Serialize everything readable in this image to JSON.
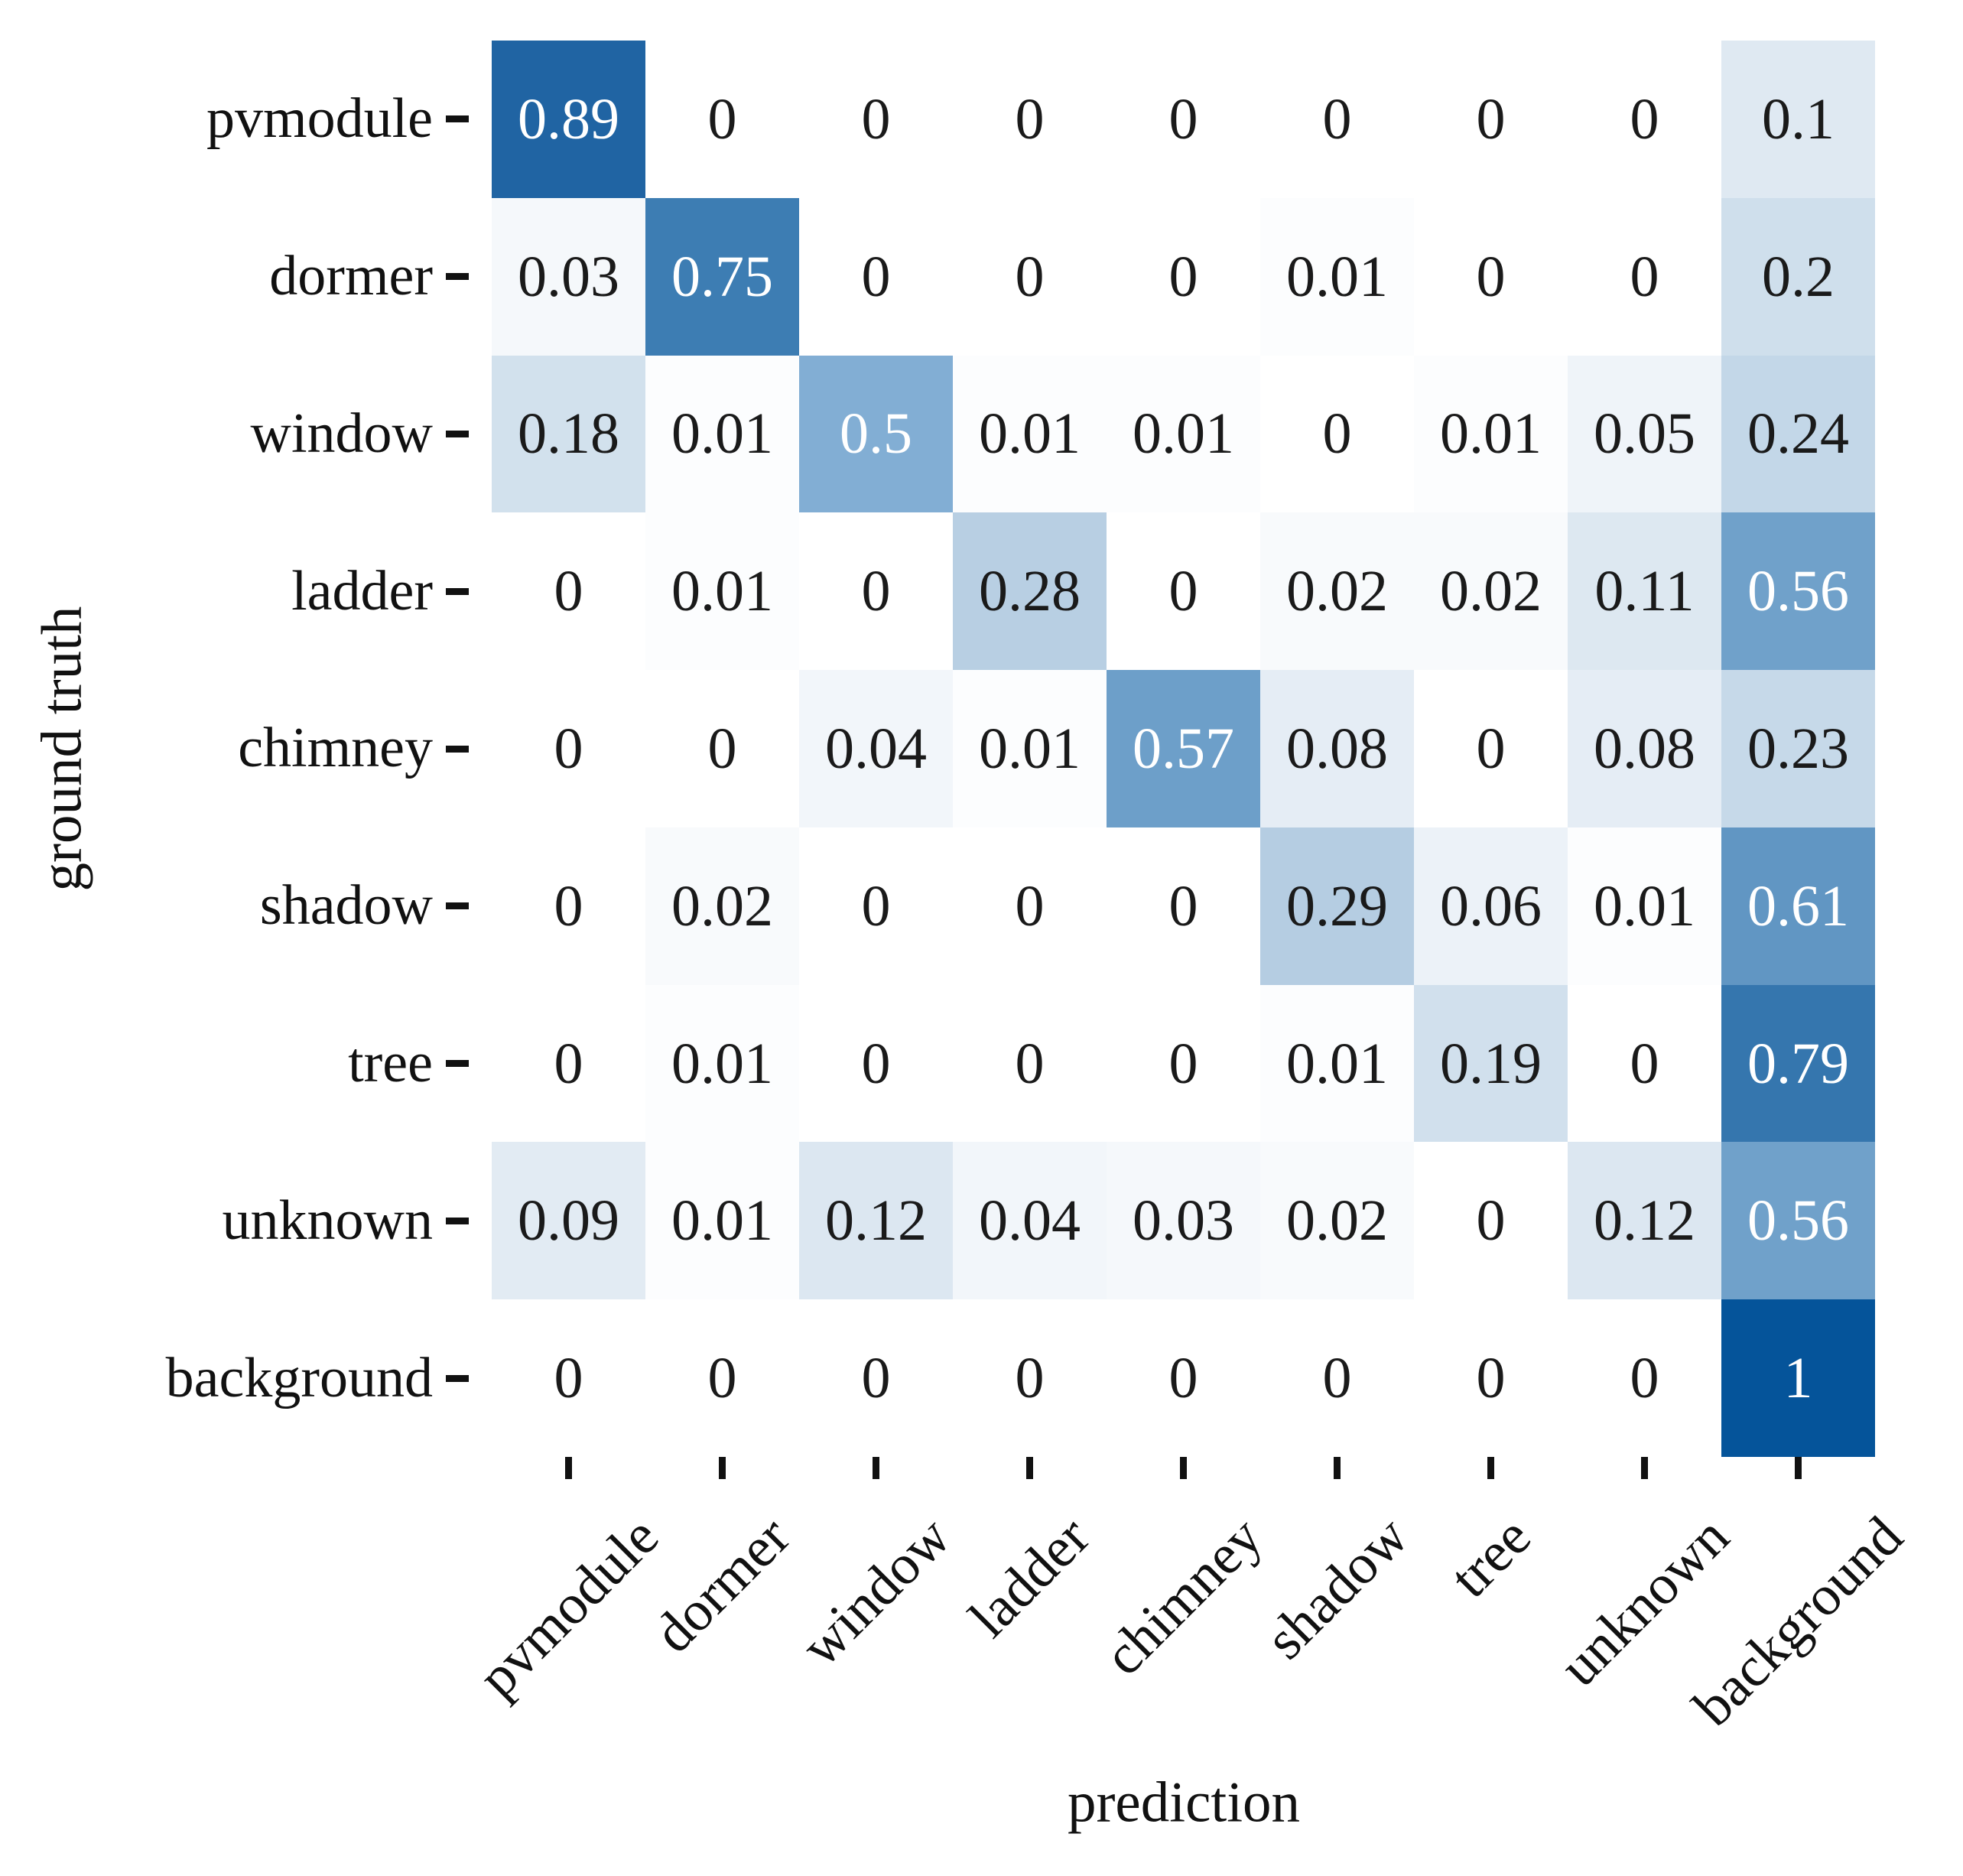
{
  "chart_data": {
    "type": "heatmap",
    "title": "",
    "xlabel": "prediction",
    "ylabel": "ground truth",
    "x_labels": [
      "pvmodule",
      "dormer",
      "window",
      "ladder",
      "chimney",
      "shadow",
      "tree",
      "unknown",
      "background"
    ],
    "y_labels": [
      "pvmodule",
      "dormer",
      "window",
      "ladder",
      "chimney",
      "shadow",
      "tree",
      "unknown",
      "background"
    ],
    "matrix": [
      [
        0.89,
        0,
        0,
        0,
        0,
        0,
        0,
        0,
        0.1
      ],
      [
        0.03,
        0.75,
        0,
        0,
        0,
        0.01,
        0,
        0,
        0.2
      ],
      [
        0.18,
        0.01,
        0.5,
        0.01,
        0.01,
        0,
        0.01,
        0.05,
        0.24
      ],
      [
        0,
        0.01,
        0,
        0.28,
        0,
        0.02,
        0.02,
        0.11,
        0.56
      ],
      [
        0,
        0,
        0.04,
        0.01,
        0.57,
        0.08,
        0,
        0.08,
        0.23
      ],
      [
        0,
        0.02,
        0,
        0,
        0,
        0.29,
        0.06,
        0.01,
        0.61
      ],
      [
        0,
        0.01,
        0,
        0,
        0,
        0.01,
        0.19,
        0,
        0.79
      ],
      [
        0.09,
        0.01,
        0.12,
        0.04,
        0.03,
        0.02,
        0,
        0.12,
        0.56
      ],
      [
        0,
        0,
        0,
        0,
        0,
        0,
        0,
        0,
        1
      ]
    ],
    "value_range": [
      0,
      1
    ],
    "grid": false,
    "legend": "none",
    "colormap": {
      "name": "Blues",
      "stops": [
        [
          0.0,
          "#ffffff"
        ],
        [
          0.03,
          "#f5f8fb"
        ],
        [
          0.05,
          "#eff4f9"
        ],
        [
          0.1,
          "#dfe9f2"
        ],
        [
          0.2,
          "#cfdfec"
        ],
        [
          0.3,
          "#b2cbe1"
        ],
        [
          0.4,
          "#9dbdda"
        ],
        [
          0.5,
          "#82aed4"
        ],
        [
          0.6,
          "#6498c4"
        ],
        [
          0.75,
          "#3d7db3"
        ],
        [
          0.9,
          "#1e62a2"
        ],
        [
          1.0,
          "#05549a"
        ]
      ],
      "white_text_threshold": 0.5,
      "dark_text_color": "#1a1a1a",
      "light_text_color": "#ffffff"
    }
  }
}
